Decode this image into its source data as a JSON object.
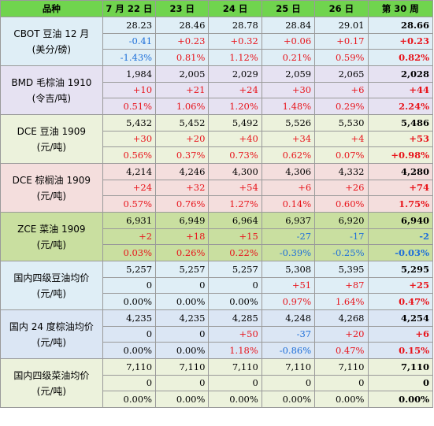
{
  "header": {
    "name": "品种",
    "dates": [
      "7 月 22 日",
      "23 日",
      "24 日",
      "25 日",
      "26 日",
      "第 30 周"
    ]
  },
  "colors": {
    "header_bg": "#70d44e",
    "up": "#e8141b",
    "down": "#1e6fd9",
    "group_bg": [
      "#dfeef6",
      "#e6e2f2",
      "#ecf2dc",
      "#f4dedd",
      "#c9dfa0",
      "#dfeef6",
      "#dbe6f4",
      "#ecf2dc"
    ]
  },
  "groups": [
    {
      "name_line1": "CBOT 豆油 12 月",
      "name_line2": "(美分/磅)",
      "price": [
        "28.23",
        "28.46",
        "28.78",
        "28.84",
        "29.01",
        "28.66"
      ],
      "change": [
        "-0.41",
        "+0.23",
        "+0.32",
        "+0.06",
        "+0.17",
        "+0.23"
      ],
      "pct": [
        "-1.43%",
        "0.81%",
        "1.12%",
        "0.21%",
        "0.59%",
        "0.82%"
      ]
    },
    {
      "name_line1": "BMD 毛棕油 1910",
      "name_line2": "(令吉/吨)",
      "price": [
        "1,984",
        "2,005",
        "2,029",
        "2,059",
        "2,065",
        "2,028"
      ],
      "change": [
        "+10",
        "+21",
        "+24",
        "+30",
        "+6",
        "+44"
      ],
      "pct": [
        "0.51%",
        "1.06%",
        "1.20%",
        "1.48%",
        "0.29%",
        "2.24%"
      ]
    },
    {
      "name_line1": "DCE 豆油 1909",
      "name_line2": "(元/吨)",
      "price": [
        "5,432",
        "5,452",
        "5,492",
        "5,526",
        "5,530",
        "5,486"
      ],
      "change": [
        "+30",
        "+20",
        "+40",
        "+34",
        "+4",
        "+53"
      ],
      "pct": [
        "0.56%",
        "0.37%",
        "0.73%",
        "0.62%",
        "0.07%",
        "+0.98%"
      ]
    },
    {
      "name_line1": "DCE 棕榈油 1909",
      "name_line2": "(元/吨)",
      "price": [
        "4,214",
        "4,246",
        "4,300",
        "4,306",
        "4,332",
        "4,280"
      ],
      "change": [
        "+24",
        "+32",
        "+54",
        "+6",
        "+26",
        "+74"
      ],
      "pct": [
        "0.57%",
        "0.76%",
        "1.27%",
        "0.14%",
        "0.60%",
        "1.75%"
      ]
    },
    {
      "name_line1": "ZCE 菜油 1909",
      "name_line2": "(元/吨)",
      "price": [
        "6,931",
        "6,949",
        "6,964",
        "6,937",
        "6,920",
        "6,940"
      ],
      "change": [
        "+2",
        "+18",
        "+15",
        "-27",
        "-17",
        "-2"
      ],
      "pct": [
        "0.03%",
        "0.26%",
        "0.22%",
        "-0.39%",
        "-0.25%",
        "-0.03%"
      ]
    },
    {
      "name_line1": "国内四级豆油均价",
      "name_line2": "(元/吨)",
      "price": [
        "5,257",
        "5,257",
        "5,257",
        "5,308",
        "5,395",
        "5,295"
      ],
      "change": [
        "0",
        "0",
        "0",
        "+51",
        "+87",
        "+25"
      ],
      "pct": [
        "0.00%",
        "0.00%",
        "0.00%",
        "0.97%",
        "1.64%",
        "0.47%"
      ]
    },
    {
      "name_line1": "国内 24 度棕油均价",
      "name_line2": "(元/吨)",
      "price": [
        "4,235",
        "4,235",
        "4,285",
        "4,248",
        "4,268",
        "4,254"
      ],
      "change": [
        "0",
        "0",
        "+50",
        "-37",
        "+20",
        "+6"
      ],
      "pct": [
        "0.00%",
        "0.00%",
        "1.18%",
        "-0.86%",
        "0.47%",
        "0.15%"
      ]
    },
    {
      "name_line1": "国内四级菜油均价",
      "name_line2": "(元/吨)",
      "price": [
        "7,110",
        "7,110",
        "7,110",
        "7,110",
        "7,110",
        "7,110"
      ],
      "change": [
        "0",
        "0",
        "0",
        "0",
        "0",
        "0"
      ],
      "pct": [
        "0.00%",
        "0.00%",
        "0.00%",
        "0.00%",
        "0.00%",
        "0.00%"
      ]
    }
  ]
}
